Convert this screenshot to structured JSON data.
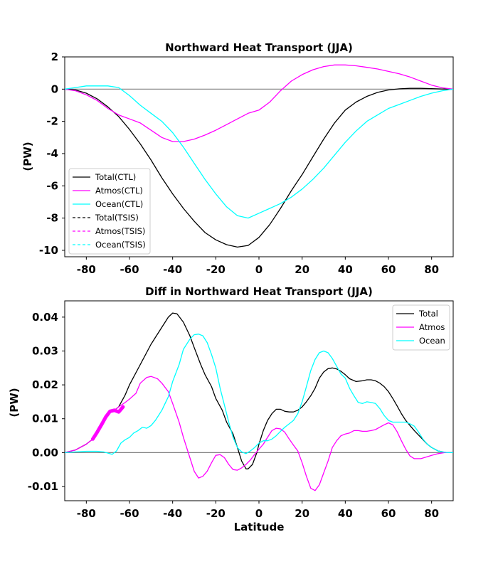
{
  "chart_data": [
    {
      "type": "line",
      "title": "Northward Heat Transport (JJA)",
      "xlabel": "",
      "ylabel": "(PW)",
      "xlim": [
        -90,
        90
      ],
      "ylim": [
        -10.4,
        2.0
      ],
      "xticks": [
        -80,
        -60,
        -40,
        -20,
        0,
        20,
        40,
        60,
        80
      ],
      "yticks": [
        2,
        0,
        -2,
        -4,
        -6,
        -8,
        -10
      ],
      "hline": 0,
      "legend_position": "lower-left",
      "series": [
        {
          "name": "Total(CTL)",
          "color": "#000000",
          "style": "solid",
          "x": [
            -90,
            -85,
            -80,
            -75,
            -70,
            -65,
            -60,
            -55,
            -50,
            -45,
            -40,
            -35,
            -30,
            -25,
            -20,
            -15,
            -10,
            -5,
            0,
            5,
            10,
            15,
            20,
            25,
            30,
            35,
            40,
            45,
            50,
            55,
            60,
            65,
            70,
            75,
            80,
            85,
            90
          ],
          "y": [
            0,
            -0.05,
            -0.25,
            -0.6,
            -1.1,
            -1.7,
            -2.5,
            -3.4,
            -4.4,
            -5.5,
            -6.5,
            -7.4,
            -8.2,
            -8.9,
            -9.35,
            -9.65,
            -9.8,
            -9.7,
            -9.2,
            -8.4,
            -7.4,
            -6.3,
            -5.3,
            -4.2,
            -3.1,
            -2.1,
            -1.3,
            -0.8,
            -0.45,
            -0.2,
            -0.05,
            0.02,
            0.05,
            0.05,
            0.03,
            0.01,
            0
          ]
        },
        {
          "name": "Atmos(CTL)",
          "color": "#ff00ff",
          "style": "solid",
          "x": [
            -90,
            -85,
            -80,
            -75,
            -70,
            -65,
            -60,
            -55,
            -50,
            -45,
            -40,
            -35,
            -30,
            -25,
            -20,
            -15,
            -10,
            -5,
            0,
            5,
            10,
            15,
            20,
            25,
            30,
            35,
            40,
            45,
            50,
            55,
            60,
            65,
            70,
            75,
            80,
            85,
            90
          ],
          "y": [
            0,
            -0.1,
            -0.35,
            -0.7,
            -1.2,
            -1.6,
            -1.85,
            -2.1,
            -2.55,
            -3.0,
            -3.25,
            -3.25,
            -3.1,
            -2.85,
            -2.55,
            -2.2,
            -1.85,
            -1.5,
            -1.3,
            -0.8,
            -0.1,
            0.5,
            0.9,
            1.2,
            1.4,
            1.5,
            1.5,
            1.45,
            1.35,
            1.25,
            1.1,
            0.95,
            0.75,
            0.5,
            0.25,
            0.08,
            0
          ]
        },
        {
          "name": "Ocean(CTL)",
          "color": "#00ffff",
          "style": "solid",
          "x": [
            -90,
            -85,
            -80,
            -75,
            -70,
            -65,
            -60,
            -55,
            -50,
            -45,
            -40,
            -35,
            -30,
            -25,
            -20,
            -15,
            -10,
            -5,
            0,
            5,
            10,
            15,
            20,
            25,
            30,
            35,
            40,
            45,
            50,
            55,
            60,
            65,
            70,
            75,
            80,
            85,
            90
          ],
          "y": [
            0,
            0.1,
            0.2,
            0.2,
            0.2,
            0.1,
            -0.4,
            -1.0,
            -1.5,
            -2.0,
            -2.7,
            -3.6,
            -4.6,
            -5.6,
            -6.5,
            -7.3,
            -7.85,
            -8.0,
            -7.7,
            -7.4,
            -7.1,
            -6.7,
            -6.2,
            -5.6,
            -4.9,
            -4.1,
            -3.3,
            -2.6,
            -2.0,
            -1.6,
            -1.2,
            -0.95,
            -0.7,
            -0.45,
            -0.25,
            -0.1,
            0
          ]
        },
        {
          "name": "Total(TSIS)",
          "color": "#000000",
          "style": "dashed",
          "x": [],
          "y": []
        },
        {
          "name": "Atmos(TSIS)",
          "color": "#ff00ff",
          "style": "dashed",
          "x": [],
          "y": []
        },
        {
          "name": "Ocean(TSIS)",
          "color": "#00ffff",
          "style": "dashed",
          "x": [],
          "y": []
        }
      ]
    },
    {
      "type": "line",
      "title": "Diff in Northward Heat Transport (JJA)",
      "xlabel": "Latitude",
      "ylabel": "(PW)",
      "xlim": [
        -90,
        90
      ],
      "ylim": [
        -0.0142,
        0.0448
      ],
      "xticks": [
        -80,
        -60,
        -40,
        -20,
        0,
        20,
        40,
        60,
        80
      ],
      "yticks": [
        0.04,
        0.03,
        0.02,
        0.01,
        0.0,
        -0.01
      ],
      "ytick_labels": [
        "0.04",
        "0.03",
        "0.02",
        "0.01",
        "0.00",
        "-0.01"
      ],
      "hline": 0,
      "legend_position": "top-right",
      "series": [
        {
          "name": "Total",
          "color": "#000000",
          "style": "solid",
          "x": [
            -90,
            -85,
            -80,
            -77,
            -75,
            -73,
            -71,
            -69,
            -67,
            -65,
            -62,
            -60,
            -55,
            -50,
            -45,
            -42,
            -40,
            -38,
            -35,
            -32,
            -30,
            -27,
            -25,
            -22,
            -20,
            -17,
            -15,
            -12,
            -10,
            -8,
            -6,
            -5,
            -3,
            -1,
            0,
            2,
            4,
            6,
            8,
            10,
            12,
            14,
            16,
            18,
            20,
            22,
            24,
            26,
            28,
            30,
            32,
            34,
            36,
            38,
            40,
            42,
            45,
            48,
            50,
            52,
            54,
            56,
            58,
            60,
            62,
            64,
            66,
            68,
            70,
            72,
            75,
            78,
            80,
            83,
            86,
            88,
            90
          ],
          "y": [
            0,
            0.0008,
            0.0025,
            0.004,
            0.006,
            0.0082,
            0.0105,
            0.0122,
            0.0125,
            0.0135,
            0.017,
            0.02,
            0.026,
            0.032,
            0.037,
            0.04,
            0.0412,
            0.041,
            0.0385,
            0.0345,
            0.031,
            0.026,
            0.023,
            0.0195,
            0.016,
            0.0125,
            0.009,
            0.0055,
            0.0015,
            -0.0025,
            -0.0048,
            -0.0048,
            -0.0035,
            0,
            0.0025,
            0.0065,
            0.0095,
            0.0115,
            0.0128,
            0.0128,
            0.0122,
            0.012,
            0.012,
            0.0125,
            0.0135,
            0.015,
            0.0168,
            0.019,
            0.022,
            0.0238,
            0.0248,
            0.025,
            0.0247,
            0.024,
            0.023,
            0.0218,
            0.021,
            0.0212,
            0.0215,
            0.0215,
            0.0212,
            0.0205,
            0.0195,
            0.018,
            0.016,
            0.0138,
            0.0115,
            0.0095,
            0.008,
            0.0065,
            0.0045,
            0.0025,
            0.0015,
            0.0005,
            0.0001,
            0,
            0
          ]
        },
        {
          "name": "Atmos",
          "color": "#ff00ff",
          "style": "solid",
          "x": [
            -90,
            -85,
            -80,
            -77,
            -75,
            -73,
            -71,
            -69,
            -67,
            -65,
            -62,
            -60,
            -57,
            -55,
            -52,
            -50,
            -47,
            -45,
            -42,
            -40,
            -37,
            -35,
            -32,
            -30,
            -28,
            -26,
            -24,
            -22,
            -20,
            -18,
            -16,
            -14,
            -12,
            -10,
            -8,
            -6,
            -4,
            -2,
            0,
            2,
            4,
            6,
            8,
            10,
            12,
            14,
            16,
            18,
            20,
            22,
            24,
            26,
            28,
            30,
            32,
            34,
            36,
            38,
            40,
            42,
            44,
            46,
            48,
            50,
            52,
            54,
            56,
            58,
            60,
            62,
            64,
            66,
            68,
            70,
            72,
            75,
            78,
            80,
            83,
            86,
            88,
            90
          ],
          "y": [
            0,
            0.0008,
            0.0025,
            0.004,
            0.006,
            0.0082,
            0.0105,
            0.0122,
            0.0125,
            0.0135,
            0.0148,
            0.0158,
            0.0175,
            0.0205,
            0.0222,
            0.0225,
            0.0218,
            0.0205,
            0.018,
            0.0145,
            0.009,
            0.0045,
            -0.0015,
            -0.0055,
            -0.0075,
            -0.007,
            -0.0055,
            -0.003,
            -0.0008,
            -0.0006,
            -0.0015,
            -0.0035,
            -0.005,
            -0.0052,
            -0.0045,
            -0.0035,
            -0.0022,
            -0.0005,
            0.001,
            0.0025,
            0.0045,
            0.0065,
            0.0072,
            0.007,
            0.006,
            0.004,
            0.0022,
            0.0005,
            -0.003,
            -0.007,
            -0.0105,
            -0.0112,
            -0.0095,
            -0.006,
            -0.0025,
            0.0015,
            0.0035,
            0.005,
            0.0055,
            0.0058,
            0.0065,
            0.0065,
            0.0063,
            0.0063,
            0.0065,
            0.0068,
            0.0075,
            0.0082,
            0.0088,
            0.0082,
            0.0062,
            0.0035,
            0.001,
            -0.001,
            -0.0018,
            -0.0018,
            -0.0012,
            -0.0008,
            -0.0003,
            0,
            0,
            0
          ]
        },
        {
          "name": "Ocean",
          "color": "#00ffff",
          "style": "solid",
          "x": [
            -90,
            -85,
            -80,
            -75,
            -72,
            -68,
            -66,
            -64,
            -62,
            -60,
            -58,
            -56,
            -54,
            -52,
            -50,
            -48,
            -45,
            -42,
            -40,
            -37,
            -35,
            -32,
            -30,
            -28,
            -26,
            -24,
            -22,
            -20,
            -18,
            -16,
            -14,
            -12,
            -10,
            -8,
            -6,
            -4,
            -2,
            0,
            2,
            4,
            6,
            8,
            10,
            12,
            14,
            16,
            18,
            20,
            22,
            24,
            26,
            28,
            30,
            32,
            34,
            36,
            38,
            40,
            42,
            44,
            46,
            48,
            50,
            52,
            54,
            56,
            58,
            60,
            62,
            64,
            66,
            68,
            70,
            72,
            74,
            76,
            78,
            80,
            83,
            86,
            88,
            90
          ],
          "y": [
            0,
            0.0002,
            0.0004,
            0.0004,
            0.0002,
            -0.0005,
            0.0005,
            0.0028,
            0.0038,
            0.0045,
            0.0058,
            0.0065,
            0.0075,
            0.0072,
            0.008,
            0.0095,
            0.0125,
            0.0165,
            0.021,
            0.026,
            0.0305,
            0.0335,
            0.0348,
            0.035,
            0.0345,
            0.0325,
            0.029,
            0.025,
            0.019,
            0.014,
            0.009,
            0.0045,
            0.0015,
            0.0002,
            -0.0003,
            0.0005,
            0.0015,
            0.0028,
            0.0035,
            0.0035,
            0.004,
            0.005,
            0.0063,
            0.0075,
            0.0085,
            0.0095,
            0.0115,
            0.015,
            0.0195,
            0.0242,
            0.0275,
            0.0295,
            0.03,
            0.0295,
            0.0278,
            0.0255,
            0.0232,
            0.022,
            0.019,
            0.0168,
            0.0148,
            0.0145,
            0.015,
            0.0148,
            0.0145,
            0.013,
            0.011,
            0.0095,
            0.009,
            0.009,
            0.009,
            0.009,
            0.0085,
            0.0078,
            0.006,
            0.004,
            0.0025,
            0.0015,
            0.0005,
            0.0001,
            0,
            0
          ]
        }
      ],
      "highlight": {
        "color": "#ff00ff",
        "x": [
          -77,
          -75,
          -73,
          -71,
          -69,
          -67,
          -65,
          -63
        ],
        "y": [
          0.004,
          0.006,
          0.0082,
          0.0105,
          0.0122,
          0.0125,
          0.012,
          0.0135
        ]
      }
    }
  ]
}
